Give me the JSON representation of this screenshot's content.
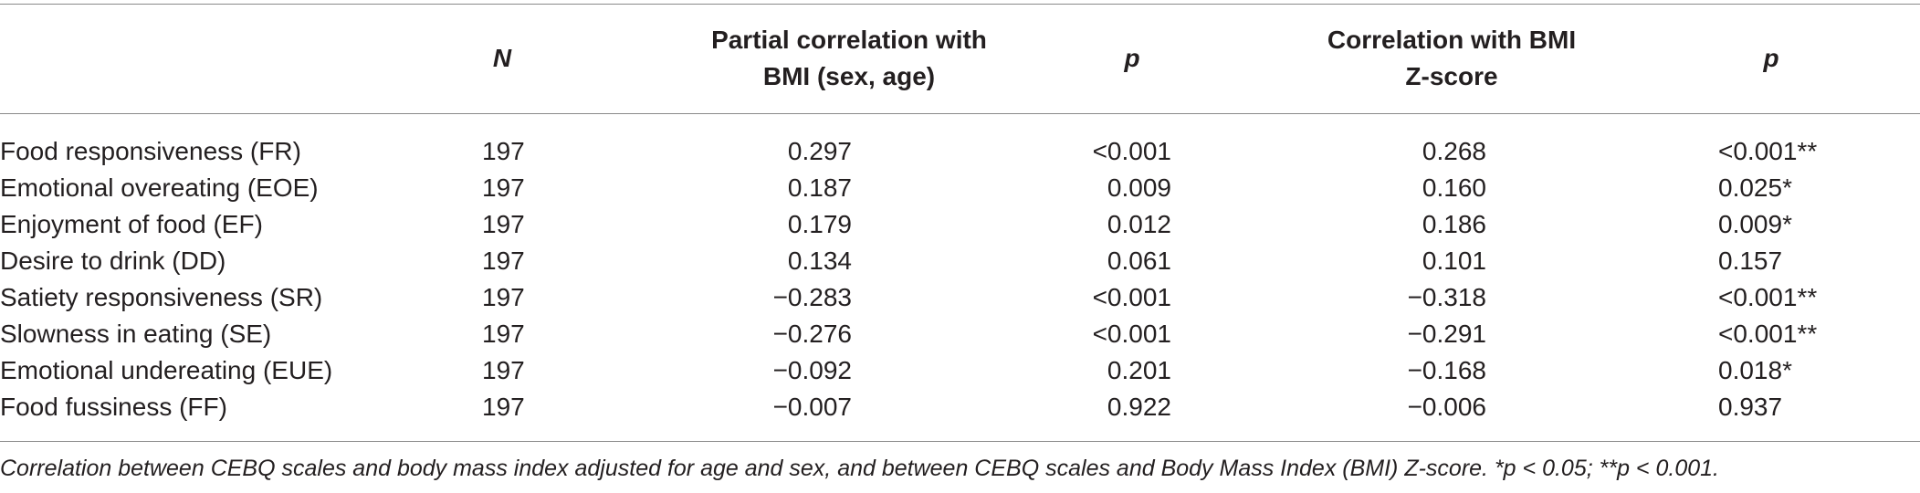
{
  "table": {
    "headers": {
      "name": "",
      "n": "N",
      "partial_line1": "Partial correlation with",
      "partial_line2": "BMI (sex, age)",
      "p1": "p",
      "corr_line1": "Correlation with BMI",
      "corr_line2": "Z-score",
      "p2": "p"
    },
    "rows": [
      {
        "name": "Food responsiveness (FR)",
        "n": "197",
        "partial": "0.297",
        "p1": "<0.001",
        "corr": "0.268",
        "p2": "<0.001**"
      },
      {
        "name": "Emotional overeating (EOE)",
        "n": "197",
        "partial": "0.187",
        "p1": "0.009",
        "corr": "0.160",
        "p2": "0.025*"
      },
      {
        "name": "Enjoyment of food (EF)",
        "n": "197",
        "partial": "0.179",
        "p1": "0.012",
        "corr": "0.186",
        "p2": "0.009*"
      },
      {
        "name": "Desire to drink (DD)",
        "n": "197",
        "partial": "0.134",
        "p1": "0.061",
        "corr": "0.101",
        "p2": "0.157"
      },
      {
        "name": "Satiety responsiveness (SR)",
        "n": "197",
        "partial": "−0.283",
        "p1": "<0.001",
        "corr": "−0.318",
        "p2": "<0.001**"
      },
      {
        "name": "Slowness in eating (SE)",
        "n": "197",
        "partial": "−0.276",
        "p1": "<0.001",
        "corr": "−0.291",
        "p2": "<0.001**"
      },
      {
        "name": "Emotional undereating (EUE)",
        "n": "197",
        "partial": "−0.092",
        "p1": "0.201",
        "corr": "−0.168",
        "p2": "0.018*"
      },
      {
        "name": "Food fussiness (FF)",
        "n": "197",
        "partial": "−0.007",
        "p1": "0.922",
        "corr": "−0.006",
        "p2": "0.937"
      }
    ],
    "footnote": "Correlation between CEBQ scales and body mass index adjusted for age and sex, and between CEBQ scales and Body Mass Index (BMI) Z-score.  *p < 0.05;  **p < 0.001."
  }
}
